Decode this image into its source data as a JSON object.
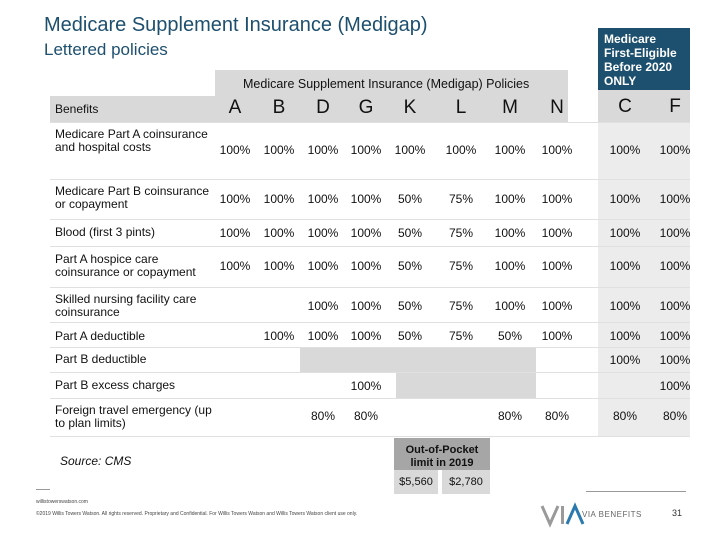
{
  "title": "Medicare Supplement Insurance (Medigap)",
  "subtitle": "Lettered policies",
  "policies_header": "Medicare Supplement Insurance (Medigap) Policies",
  "first_eligible_header": "Medicare First-Eligible Before 2020 ONLY",
  "benefits_label": "Benefits",
  "columns": [
    "A",
    "B",
    "D",
    "G",
    "K",
    "L",
    "M",
    "N",
    "C",
    "F"
  ],
  "rows": [
    {
      "label": "Medicare Part A coinsurance and hospital costs",
      "values": [
        "100%",
        "100%",
        "100%",
        "100%",
        "100%",
        "100%",
        "100%",
        "100%",
        "100%",
        "100%"
      ]
    },
    {
      "label": "Medicare Part B coinsurance or copayment",
      "values": [
        "100%",
        "100%",
        "100%",
        "100%",
        "50%",
        "75%",
        "100%",
        "100%",
        "100%",
        "100%"
      ]
    },
    {
      "label": "Blood (first 3 pints)",
      "values": [
        "100%",
        "100%",
        "100%",
        "100%",
        "50%",
        "75%",
        "100%",
        "100%",
        "100%",
        "100%"
      ]
    },
    {
      "label": "Part A hospice care coinsurance or copayment",
      "values": [
        "100%",
        "100%",
        "100%",
        "100%",
        "50%",
        "75%",
        "100%",
        "100%",
        "100%",
        "100%"
      ]
    },
    {
      "label": "Skilled nursing facility care coinsurance",
      "values": [
        "",
        "",
        "100%",
        "100%",
        "50%",
        "75%",
        "100%",
        "100%",
        "100%",
        "100%"
      ]
    },
    {
      "label": "Part A deductible",
      "values": [
        "",
        "100%",
        "100%",
        "100%",
        "50%",
        "75%",
        "50%",
        "100%",
        "100%",
        "100%"
      ]
    },
    {
      "label": "Part B deductible",
      "values": [
        "",
        "",
        "",
        "",
        "",
        "",
        "",
        "",
        "100%",
        "100%"
      ]
    },
    {
      "label": "Part B excess charges",
      "values": [
        "",
        "",
        "",
        "100%",
        "",
        "",
        "",
        "",
        "",
        "100%"
      ]
    },
    {
      "label": "Foreign travel emergency (up to plan limits)",
      "values": [
        "",
        "",
        "80%",
        "80%",
        "",
        "",
        "80%",
        "80%",
        "80%",
        "80%"
      ]
    }
  ],
  "out_of_pocket": {
    "label": "Out-of-Pocket limit in 2019",
    "k_value": "$5,560",
    "l_value": "$2,780"
  },
  "source": "Source: CMS",
  "footer_url": "willistowerswatson.com",
  "footer_copyright": "©2019 Willis Towers Watson. All rights reserved. Proprietary and Confidential. For Willis Towers Watson and Willis Towers Watson client use only.",
  "logo_text": "VIA BENEFITS",
  "page_number": "31",
  "colors": {
    "title": "#1d4f6e",
    "header_bg": "#1d4f6e",
    "band": "#d9d9d9",
    "logo_accent": "#2a7ab0"
  }
}
